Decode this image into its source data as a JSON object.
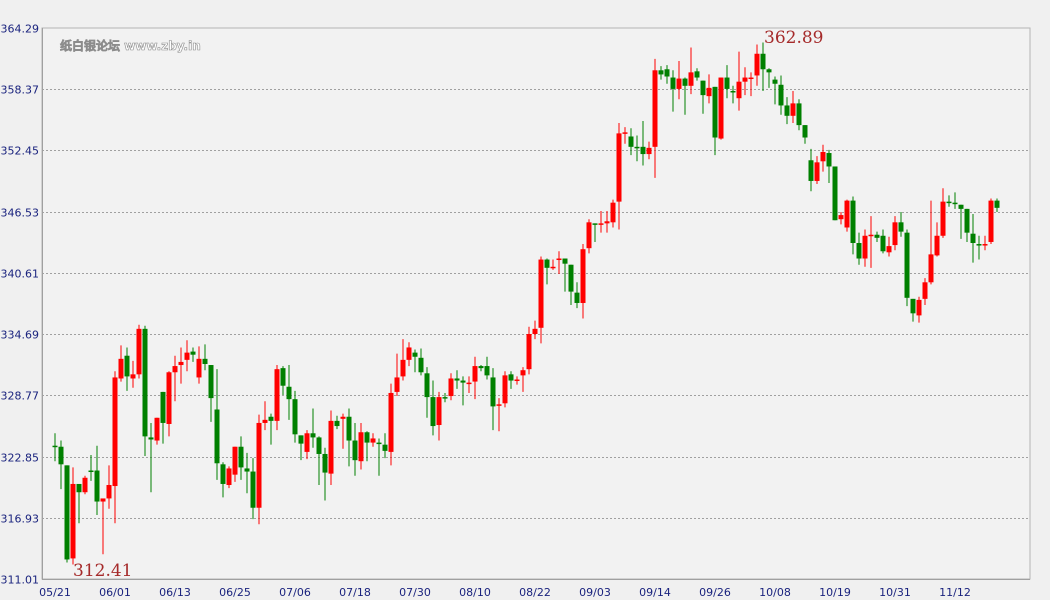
{
  "chart_data": {
    "type": "candlestick",
    "title": "",
    "xlabel": "",
    "ylabel": "",
    "ylim": [
      311.01,
      364.29
    ],
    "y_ticks": [
      "311.01",
      "316.93",
      "322.85",
      "328.77",
      "334.69",
      "340.61",
      "346.53",
      "352.45",
      "358.37",
      "364.29"
    ],
    "x_tick_labels": [
      "05/21",
      "06/01",
      "06/13",
      "06/25",
      "07/06",
      "07/18",
      "07/30",
      "08/10",
      "08/22",
      "09/03",
      "09/14",
      "09/26",
      "10/08",
      "10/19",
      "10/31",
      "11/12"
    ],
    "x_tick_every_n_candles": 10,
    "grid": "horizontal dotted",
    "colors": {
      "up": "#ff0000",
      "down": "#008000",
      "grid": "#a0a0a0",
      "tick_text": "#1a237e",
      "annotation": "#a52a2a",
      "background": "#f2f2f2"
    },
    "annotations": {
      "max_label": "362.89",
      "min_label": "312.41"
    },
    "ohlc_fields": [
      "open",
      "high",
      "low",
      "close"
    ],
    "ohlc": [
      [
        323.9,
        325.1,
        322.4,
        323.8
      ],
      [
        323.8,
        324.4,
        319.7,
        322.1
      ],
      [
        322.0,
        322.0,
        312.6,
        312.9
      ],
      [
        313.0,
        321.8,
        312.41,
        320.2
      ],
      [
        320.2,
        320.2,
        316.4,
        319.4
      ],
      [
        319.4,
        321.0,
        319.2,
        320.8
      ],
      [
        321.5,
        323.0,
        320.5,
        321.4
      ],
      [
        321.5,
        323.9,
        317.2,
        318.5
      ],
      [
        318.5,
        318.8,
        313.4,
        318.8
      ],
      [
        318.8,
        322.0,
        317.8,
        320.1
      ],
      [
        320.0,
        331.1,
        316.4,
        330.5
      ],
      [
        330.4,
        333.6,
        330.1,
        332.3
      ],
      [
        332.6,
        333.4,
        329.2,
        330.6
      ],
      [
        330.4,
        332.1,
        329.5,
        330.8
      ],
      [
        330.8,
        335.6,
        330.4,
        335.2
      ],
      [
        335.2,
        335.5,
        322.9,
        324.8
      ],
      [
        324.7,
        326.1,
        319.4,
        324.5
      ],
      [
        324.4,
        326.6,
        324.0,
        326.6
      ],
      [
        329.1,
        329.1,
        324.1,
        326.1
      ],
      [
        326.0,
        331.1,
        324.8,
        331.0
      ],
      [
        331.0,
        332.6,
        328.2,
        331.6
      ],
      [
        331.7,
        333.4,
        329.9,
        332.0
      ],
      [
        332.2,
        334.1,
        331.1,
        332.9
      ],
      [
        333.0,
        333.4,
        332.0,
        332.7
      ],
      [
        330.5,
        333.5,
        329.9,
        332.3
      ],
      [
        332.3,
        333.7,
        331.2,
        331.8
      ],
      [
        331.7,
        331.7,
        326.2,
        328.5
      ],
      [
        327.4,
        331.3,
        320.6,
        322.2
      ],
      [
        322.1,
        322.3,
        318.9,
        320.2
      ],
      [
        320.1,
        321.9,
        319.8,
        321.7
      ],
      [
        321.1,
        323.8,
        320.4,
        323.8
      ],
      [
        323.8,
        324.8,
        320.6,
        321.8
      ],
      [
        321.7,
        323.2,
        319.3,
        321.4
      ],
      [
        321.4,
        322.7,
        316.8,
        317.9
      ],
      [
        317.9,
        326.9,
        316.3,
        326.1
      ],
      [
        326.1,
        328.2,
        325.4,
        326.4
      ],
      [
        326.7,
        327.0,
        324.0,
        326.3
      ],
      [
        326.3,
        331.7,
        325.4,
        331.3
      ],
      [
        331.4,
        331.6,
        328.8,
        329.7
      ],
      [
        329.6,
        331.7,
        326.4,
        328.4
      ],
      [
        328.4,
        329.2,
        324.2,
        325.0
      ],
      [
        324.9,
        324.9,
        322.5,
        324.1
      ],
      [
        323.3,
        325.4,
        322.6,
        325.1
      ],
      [
        325.1,
        327.5,
        323.7,
        324.7
      ],
      [
        324.7,
        324.8,
        320.1,
        323.1
      ],
      [
        323.1,
        323.7,
        318.6,
        321.3
      ],
      [
        321.2,
        327.3,
        320.1,
        326.3
      ],
      [
        326.3,
        326.8,
        325.5,
        325.8
      ],
      [
        326.5,
        327.0,
        323.6,
        326.7
      ],
      [
        326.7,
        327.5,
        321.9,
        324.4
      ],
      [
        324.4,
        326.1,
        321.0,
        322.5
      ],
      [
        322.4,
        326.1,
        321.6,
        325.2
      ],
      [
        325.2,
        325.3,
        322.4,
        324.2
      ],
      [
        324.2,
        325.1,
        323.8,
        324.6
      ],
      [
        324.2,
        324.6,
        321.0,
        324.1
      ],
      [
        324.0,
        325.1,
        322.7,
        323.4
      ],
      [
        323.3,
        329.9,
        322.0,
        329.0
      ],
      [
        329.1,
        332.8,
        328.7,
        330.5
      ],
      [
        330.6,
        334.2,
        330.2,
        332.2
      ],
      [
        332.2,
        333.9,
        331.6,
        333.4
      ],
      [
        332.9,
        333.2,
        331.0,
        332.5
      ],
      [
        332.4,
        333.3,
        330.7,
        331.0
      ],
      [
        330.9,
        331.5,
        326.6,
        328.6
      ],
      [
        328.6,
        330.2,
        324.9,
        325.8
      ],
      [
        325.9,
        329.1,
        324.4,
        328.6
      ],
      [
        328.6,
        329.0,
        328.1,
        328.5
      ],
      [
        328.7,
        330.9,
        328.3,
        330.4
      ],
      [
        330.4,
        331.2,
        329.4,
        330.2
      ],
      [
        330.2,
        330.6,
        327.8,
        330.0
      ],
      [
        329.9,
        330.6,
        329.0,
        330.0
      ],
      [
        330.1,
        332.5,
        328.4,
        331.6
      ],
      [
        331.6,
        331.7,
        331.1,
        331.4
      ],
      [
        331.6,
        332.5,
        330.3,
        330.7
      ],
      [
        330.5,
        331.4,
        325.4,
        327.7
      ],
      [
        327.8,
        328.5,
        325.3,
        327.9
      ],
      [
        328.0,
        331.1,
        327.6,
        330.7
      ],
      [
        330.8,
        331.1,
        329.4,
        330.2
      ],
      [
        330.2,
        330.6,
        329.8,
        330.3
      ],
      [
        330.7,
        331.5,
        329.1,
        331.2
      ],
      [
        331.3,
        335.4,
        330.8,
        334.7
      ],
      [
        334.7,
        336.0,
        334.2,
        335.2
      ],
      [
        335.3,
        342.2,
        333.8,
        341.9
      ],
      [
        341.9,
        342.0,
        339.5,
        341.1
      ],
      [
        341.1,
        341.9,
        340.9,
        341.2
      ],
      [
        341.9,
        342.7,
        340.5,
        342.0
      ],
      [
        342.0,
        342.0,
        338.8,
        341.5
      ],
      [
        341.4,
        341.4,
        337.5,
        338.8
      ],
      [
        338.7,
        339.7,
        337.2,
        337.7
      ],
      [
        337.7,
        343.4,
        336.2,
        342.9
      ],
      [
        343.0,
        345.8,
        342.5,
        345.5
      ],
      [
        345.4,
        345.4,
        343.6,
        345.3
      ],
      [
        345.3,
        346.6,
        344.5,
        345.4
      ],
      [
        345.4,
        346.6,
        344.5,
        345.6
      ],
      [
        345.5,
        347.7,
        345.0,
        347.4
      ],
      [
        347.5,
        355.1,
        344.8,
        354.1
      ],
      [
        354.1,
        354.7,
        353.1,
        354.2
      ],
      [
        353.8,
        354.6,
        352.0,
        352.8
      ],
      [
        352.8,
        353.9,
        351.4,
        352.7
      ],
      [
        352.8,
        355.3,
        351.0,
        352.1
      ],
      [
        352.1,
        353.3,
        351.6,
        352.7
      ],
      [
        352.8,
        361.3,
        349.8,
        360.2
      ],
      [
        360.2,
        360.6,
        359.3,
        359.8
      ],
      [
        360.3,
        360.7,
        358.9,
        359.6
      ],
      [
        359.5,
        360.2,
        356.2,
        358.4
      ],
      [
        358.4,
        361.1,
        357.4,
        359.4
      ],
      [
        359.4,
        359.5,
        355.9,
        358.7
      ],
      [
        358.7,
        362.4,
        357.9,
        360.0
      ],
      [
        360.1,
        360.4,
        359.2,
        359.5
      ],
      [
        359.2,
        359.2,
        356.0,
        357.8
      ],
      [
        357.7,
        359.8,
        357.0,
        358.5
      ],
      [
        358.6,
        358.6,
        352.0,
        353.7
      ],
      [
        353.6,
        359.5,
        353.5,
        359.5
      ],
      [
        359.5,
        360.7,
        357.5,
        358.4
      ],
      [
        358.2,
        358.7,
        357.0,
        358.1
      ],
      [
        357.5,
        362.0,
        356.3,
        359.1
      ],
      [
        359.1,
        360.5,
        357.8,
        359.5
      ],
      [
        359.4,
        360.0,
        357.7,
        359.5
      ],
      [
        359.7,
        362.7,
        358.7,
        361.8
      ],
      [
        361.8,
        362.89,
        358.2,
        360.3
      ],
      [
        360.3,
        360.4,
        358.5,
        360.0
      ],
      [
        359.3,
        359.6,
        356.9,
        358.9
      ],
      [
        358.8,
        359.7,
        355.9,
        356.8
      ],
      [
        356.8,
        357.6,
        355.0,
        355.8
      ],
      [
        355.8,
        358.2,
        355.1,
        357.0
      ],
      [
        357.0,
        357.4,
        354.4,
        354.9
      ],
      [
        354.9,
        354.9,
        353.1,
        353.7
      ],
      [
        351.5,
        352.6,
        348.5,
        349.5
      ],
      [
        349.5,
        351.9,
        349.2,
        351.3
      ],
      [
        351.4,
        353.0,
        350.4,
        352.3
      ],
      [
        352.2,
        352.5,
        349.3,
        350.9
      ],
      [
        350.9,
        350.9,
        345.7,
        345.7
      ],
      [
        345.8,
        346.5,
        345.3,
        346.2
      ],
      [
        345.0,
        347.7,
        344.6,
        347.6
      ],
      [
        347.6,
        348.0,
        342.4,
        343.5
      ],
      [
        343.5,
        344.5,
        341.4,
        342.0
      ],
      [
        342.0,
        344.8,
        341.2,
        344.2
      ],
      [
        344.2,
        346.1,
        341.1,
        344.3
      ],
      [
        344.3,
        344.6,
        343.6,
        344.0
      ],
      [
        344.2,
        344.8,
        342.5,
        342.7
      ],
      [
        342.6,
        344.1,
        342.2,
        343.2
      ],
      [
        343.3,
        346.1,
        342.8,
        345.5
      ],
      [
        345.5,
        346.5,
        344.1,
        344.6
      ],
      [
        344.5,
        344.8,
        337.4,
        338.2
      ],
      [
        338.1,
        338.1,
        335.9,
        336.7
      ],
      [
        336.5,
        338.3,
        335.8,
        338.0
      ],
      [
        338.1,
        340.1,
        337.5,
        339.7
      ],
      [
        339.7,
        347.6,
        339.5,
        342.4
      ],
      [
        342.3,
        345.5,
        342.2,
        344.2
      ],
      [
        344.2,
        348.8,
        344.0,
        347.5
      ],
      [
        347.5,
        348.1,
        347.0,
        347.4
      ],
      [
        347.4,
        348.4,
        346.8,
        347.3
      ],
      [
        347.2,
        347.2,
        343.9,
        346.8
      ],
      [
        346.8,
        346.8,
        343.6,
        344.5
      ],
      [
        344.4,
        346.3,
        341.6,
        343.5
      ],
      [
        343.4,
        344.2,
        341.9,
        343.3
      ],
      [
        343.3,
        344.2,
        342.8,
        343.4
      ],
      [
        343.6,
        347.8,
        343.4,
        347.6
      ],
      [
        347.6,
        347.8,
        346.5,
        346.9
      ]
    ]
  },
  "watermark": "纸白银论坛 www.zby.in"
}
